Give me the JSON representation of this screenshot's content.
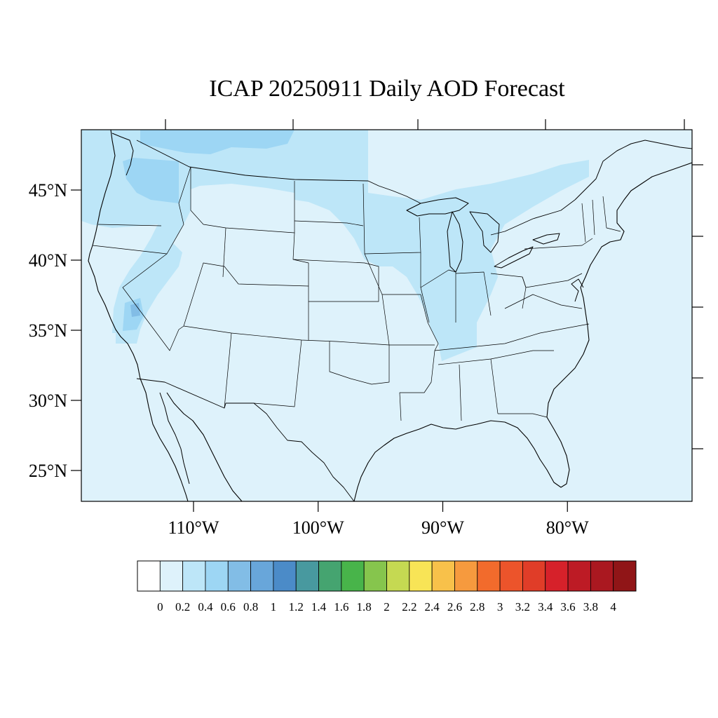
{
  "title": "ICAP 20250911 Daily AOD Forecast",
  "map": {
    "lon_range": [
      -119,
      -70
    ],
    "lat_range": [
      22.8,
      49.3
    ],
    "lat_labels": [
      "45°N",
      "40°N",
      "35°N",
      "30°N",
      "25°N"
    ],
    "lat_values": [
      45,
      40,
      35,
      30,
      25
    ],
    "lon_labels": [
      "110°W",
      "100°W",
      "90°W",
      "80°W"
    ],
    "lon_values": [
      -110,
      -100,
      -90,
      -80
    ],
    "background_level_color": "#def2fb"
  },
  "colorbar": {
    "tick_labels": [
      "0",
      "0.2",
      "0.4",
      "0.6",
      "0.8",
      "1",
      "1.2",
      "1.4",
      "1.6",
      "1.8",
      "2",
      "2.2",
      "2.4",
      "2.6",
      "2.8",
      "3",
      "3.2",
      "3.4",
      "3.6",
      "3.8",
      "4"
    ],
    "colors": [
      "#ffffff",
      "#def2fb",
      "#bde6f8",
      "#9dd6f4",
      "#82bde6",
      "#68a6da",
      "#4b8bc8",
      "#48999f",
      "#45a470",
      "#48b44a",
      "#86c54d",
      "#c5d952",
      "#f8e456",
      "#f8c14a",
      "#f69a3e",
      "#f26b2c",
      "#ec542b",
      "#e03d28",
      "#d6212a",
      "#bd1b25",
      "#aa1820",
      "#901517"
    ]
  },
  "aod_patches": [
    {
      "region": "Pacific Northwest / Montana",
      "level": "0.2-0.4",
      "color": "#bde6f8"
    },
    {
      "region": "Washington / Oregon smoke",
      "level": "0.4-0.6",
      "color": "#9dd6f4"
    },
    {
      "region": "Southern Nevada / California",
      "level": "0.4-0.6",
      "color": "#9dd6f4"
    },
    {
      "region": "Southern Nevada core",
      "level": "0.6-0.8",
      "color": "#82bde6"
    },
    {
      "region": "Upper Midwest / Great Lakes",
      "level": "0.2-0.4",
      "color": "#bde6f8"
    }
  ]
}
